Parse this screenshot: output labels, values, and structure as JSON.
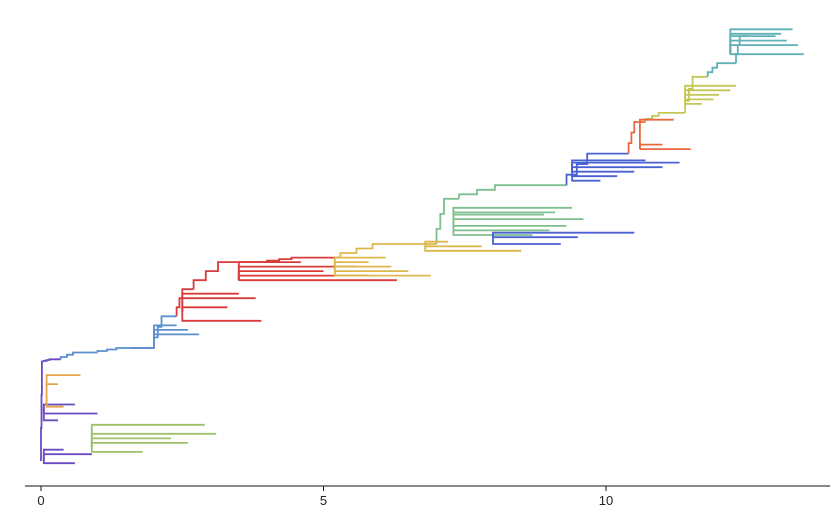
{
  "figure": {
    "type": "phylogenetic-tree",
    "x_axis": {
      "ticks": [
        "0",
        "5",
        "10"
      ],
      "tick_values": [
        0,
        5,
        10
      ],
      "range": [
        -0.3,
        13.9
      ]
    }
  },
  "tree": {
    "y_range": [
      0,
      100
    ],
    "color_palette": {
      "purple": "#6a4bc4",
      "orange": "#e8a44a",
      "lime": "#9dc06a",
      "blue": "#5b8fcf",
      "red": "#d93a3a",
      "gold": "#dcb84c",
      "green": "#7dbf8e",
      "indigo": "#4a62d1",
      "vermilion": "#e8683f",
      "olive": "#c6c656",
      "teal": "#5fb0b7"
    },
    "backbone": [
      {
        "x0": 0.0,
        "x1": 0.05,
        "y0": 2,
        "y1": 24,
        "color": "purple"
      },
      {
        "x0": 0.05,
        "x1": 0.35,
        "y0": 24,
        "y1": 24.5,
        "color": "purple"
      },
      {
        "x0": 0.35,
        "x1": 1.0,
        "y0": 24.5,
        "y1": 26,
        "color": "blue"
      },
      {
        "x0": 1.0,
        "x1": 2.0,
        "y0": 26,
        "y1": 27,
        "color": "blue"
      },
      {
        "x0": 2.0,
        "x1": 2.4,
        "y0": 27,
        "y1": 34,
        "color": "blue"
      },
      {
        "x0": 2.4,
        "x1": 2.7,
        "y0": 34,
        "y1": 40,
        "color": "red"
      },
      {
        "x0": 2.7,
        "x1": 4.0,
        "y0": 40,
        "y1": 46,
        "color": "red"
      },
      {
        "x0": 4.0,
        "x1": 5.3,
        "y0": 46,
        "y1": 47,
        "color": "red"
      },
      {
        "x0": 5.3,
        "x1": 7.0,
        "y0": 47,
        "y1": 50,
        "color": "gold"
      },
      {
        "x0": 7.0,
        "x1": 7.4,
        "y0": 50,
        "y1": 60,
        "color": "green"
      },
      {
        "x0": 7.4,
        "x1": 9.3,
        "y0": 60,
        "y1": 63,
        "color": "green"
      },
      {
        "x0": 9.3,
        "x1": 10.4,
        "y0": 63,
        "y1": 70,
        "color": "indigo"
      },
      {
        "x0": 10.4,
        "x1": 10.7,
        "y0": 70,
        "y1": 77,
        "color": "vermilion"
      },
      {
        "x0": 10.7,
        "x1": 11.4,
        "y0": 77,
        "y1": 79,
        "color": "olive"
      },
      {
        "x0": 11.4,
        "x1": 11.8,
        "y0": 79,
        "y1": 87,
        "color": "olive"
      },
      {
        "x0": 11.8,
        "x1": 12.3,
        "y0": 87,
        "y1": 90,
        "color": "teal"
      },
      {
        "x0": 12.3,
        "x1": 12.5,
        "y0": 90,
        "y1": 96,
        "color": "teal"
      }
    ],
    "clades": [
      {
        "color": "purple",
        "x0": 0.05,
        "y0": 14,
        "tips": [
          [
            0.3,
            11
          ],
          [
            1.0,
            12.5
          ],
          [
            0.6,
            14.5
          ]
        ]
      },
      {
        "color": "purple",
        "x0": 0.05,
        "y0": 2,
        "tips": [
          [
            0.6,
            1.5
          ],
          [
            0.9,
            3.5
          ],
          [
            0.4,
            4.5
          ]
        ]
      },
      {
        "color": "orange",
        "x0": 0.1,
        "y0": 17,
        "tips": [
          [
            0.4,
            14
          ],
          [
            0.7,
            21
          ],
          [
            0.3,
            19
          ]
        ]
      },
      {
        "color": "lime",
        "x0": 0.9,
        "y0": 5,
        "tips": [
          [
            2.9,
            10
          ],
          [
            3.1,
            8
          ],
          [
            2.6,
            6
          ],
          [
            1.8,
            4
          ],
          [
            2.3,
            7
          ]
        ]
      },
      {
        "color": "blue",
        "x0": 2.0,
        "y0": 29,
        "tips": [
          [
            2.8,
            30
          ],
          [
            2.6,
            31
          ],
          [
            2.4,
            32
          ],
          [
            1.6,
            27
          ]
        ]
      },
      {
        "color": "red",
        "x0": 2.5,
        "y0": 35,
        "tips": [
          [
            3.9,
            33
          ],
          [
            3.3,
            36
          ],
          [
            3.8,
            38
          ],
          [
            3.5,
            39
          ]
        ]
      },
      {
        "color": "red",
        "x0": 3.5,
        "y0": 42,
        "tips": [
          [
            6.3,
            42
          ],
          [
            5.8,
            43
          ],
          [
            5.0,
            44
          ],
          [
            5.6,
            45
          ],
          [
            4.6,
            46
          ]
        ]
      },
      {
        "color": "gold",
        "x0": 5.2,
        "y0": 44,
        "tips": [
          [
            6.9,
            43
          ],
          [
            6.5,
            44
          ],
          [
            6.2,
            45
          ],
          [
            5.8,
            46
          ],
          [
            6.1,
            47
          ]
        ]
      },
      {
        "color": "gold",
        "x0": 6.8,
        "y0": 49,
        "tips": [
          [
            8.5,
            48.5
          ],
          [
            7.8,
            49.5
          ],
          [
            7.2,
            50.5
          ]
        ]
      },
      {
        "color": "green",
        "x0": 7.3,
        "y0": 55,
        "tips": [
          [
            9.6,
            55.5
          ],
          [
            9.3,
            54
          ],
          [
            9.0,
            53
          ],
          [
            8.7,
            52
          ],
          [
            8.9,
            56.5
          ],
          [
            9.1,
            57
          ],
          [
            9.4,
            58
          ]
        ]
      },
      {
        "color": "indigo",
        "x0": 8.0,
        "y0": 52,
        "tips": [
          [
            10.5,
            52.5
          ],
          [
            9.5,
            51.5
          ],
          [
            9.2,
            50
          ]
        ]
      },
      {
        "color": "indigo",
        "x0": 9.4,
        "y0": 66,
        "tips": [
          [
            11.3,
            68
          ],
          [
            11.0,
            67
          ],
          [
            10.5,
            66
          ],
          [
            10.2,
            65
          ],
          [
            9.9,
            64
          ],
          [
            10.7,
            68.5
          ]
        ]
      },
      {
        "color": "vermilion",
        "x0": 10.6,
        "y0": 71,
        "tips": [
          [
            11.5,
            71
          ],
          [
            11.0,
            72
          ],
          [
            11.2,
            77.5
          ]
        ]
      },
      {
        "color": "olive",
        "x0": 11.4,
        "y0": 83,
        "tips": [
          [
            12.2,
            84
          ],
          [
            12.0,
            83
          ],
          [
            11.9,
            82
          ],
          [
            11.7,
            81
          ],
          [
            12.3,
            85
          ]
        ]
      },
      {
        "color": "teal",
        "x0": 12.2,
        "y0": 92,
        "tips": [
          [
            13.5,
            92
          ],
          [
            13.4,
            94
          ],
          [
            13.2,
            95
          ],
          [
            13.0,
            96
          ],
          [
            13.3,
            97.5
          ],
          [
            13.1,
            96.5
          ]
        ]
      }
    ]
  }
}
